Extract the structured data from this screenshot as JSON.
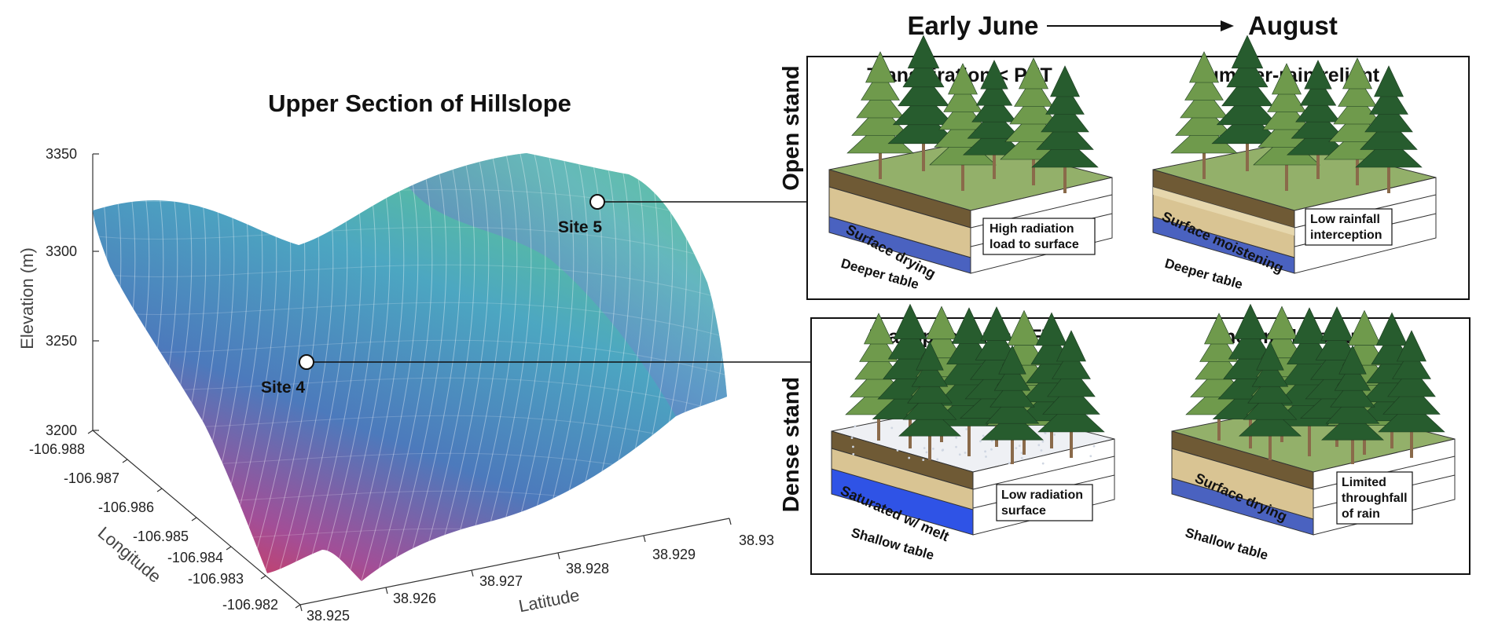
{
  "left_plot": {
    "title": "Upper Section of Hillslope",
    "z_label": "Elevation (m)",
    "z_ticks": [
      "3350",
      "3300",
      "3250",
      "3200"
    ],
    "lon_label": "Longitude",
    "lon_ticks": [
      "-106.988",
      "-106.987",
      "-106.986",
      "-106.985",
      "-106.984",
      "-106.983",
      "-106.982"
    ],
    "lat_label": "Latitude",
    "lat_ticks": [
      "38.925",
      "38.926",
      "38.927",
      "38.928",
      "38.929",
      "38.93"
    ],
    "site4": "Site 4",
    "site5": "Site 5",
    "colors": {
      "low": "#e8202a",
      "mid_low": "#7a4fa8",
      "mid": "#2a7fb6",
      "high": "#4dbf8d"
    }
  },
  "timeline": {
    "start": "Early June",
    "end": "August"
  },
  "rows": [
    {
      "label": "Open stand",
      "panels": [
        {
          "title": "Transpiration < PET",
          "layer": "Surface drying",
          "table": "Deeper table",
          "note_l1": "High radiation",
          "note_l2": "load to surface",
          "note_l3": ""
        },
        {
          "title": "Summer-rain reliant",
          "layer": "Surface moistening",
          "table": "Deeper table",
          "note_l1": "Low rainfall",
          "note_l2": "interception",
          "note_l3": ""
        }
      ]
    },
    {
      "label": "Dense stand",
      "panels": [
        {
          "title": "Transpiration ≈ PET",
          "layer": "Saturated w/ melt",
          "table": "Shallow table",
          "note_l1": "Low radiation",
          "note_l2": "surface",
          "note_l3": ""
        },
        {
          "title": "Snowmelt-reliant",
          "layer": "Surface drying",
          "table": "Shallow table",
          "note_l1": "Limited",
          "note_l2": "throughfall",
          "note_l3": "of rain"
        }
      ]
    }
  ],
  "palette": {
    "grass": "#93b06a",
    "soil": "#d9c493",
    "soil_dark": "#6f5a35",
    "water_deep": "#4a62c0",
    "water_shallow": "#2f53e6",
    "snow": "#eef0f4",
    "tree_dark": "#275c2e",
    "tree_light": "#6f9a4c",
    "trunk": "#8a6a4a"
  }
}
